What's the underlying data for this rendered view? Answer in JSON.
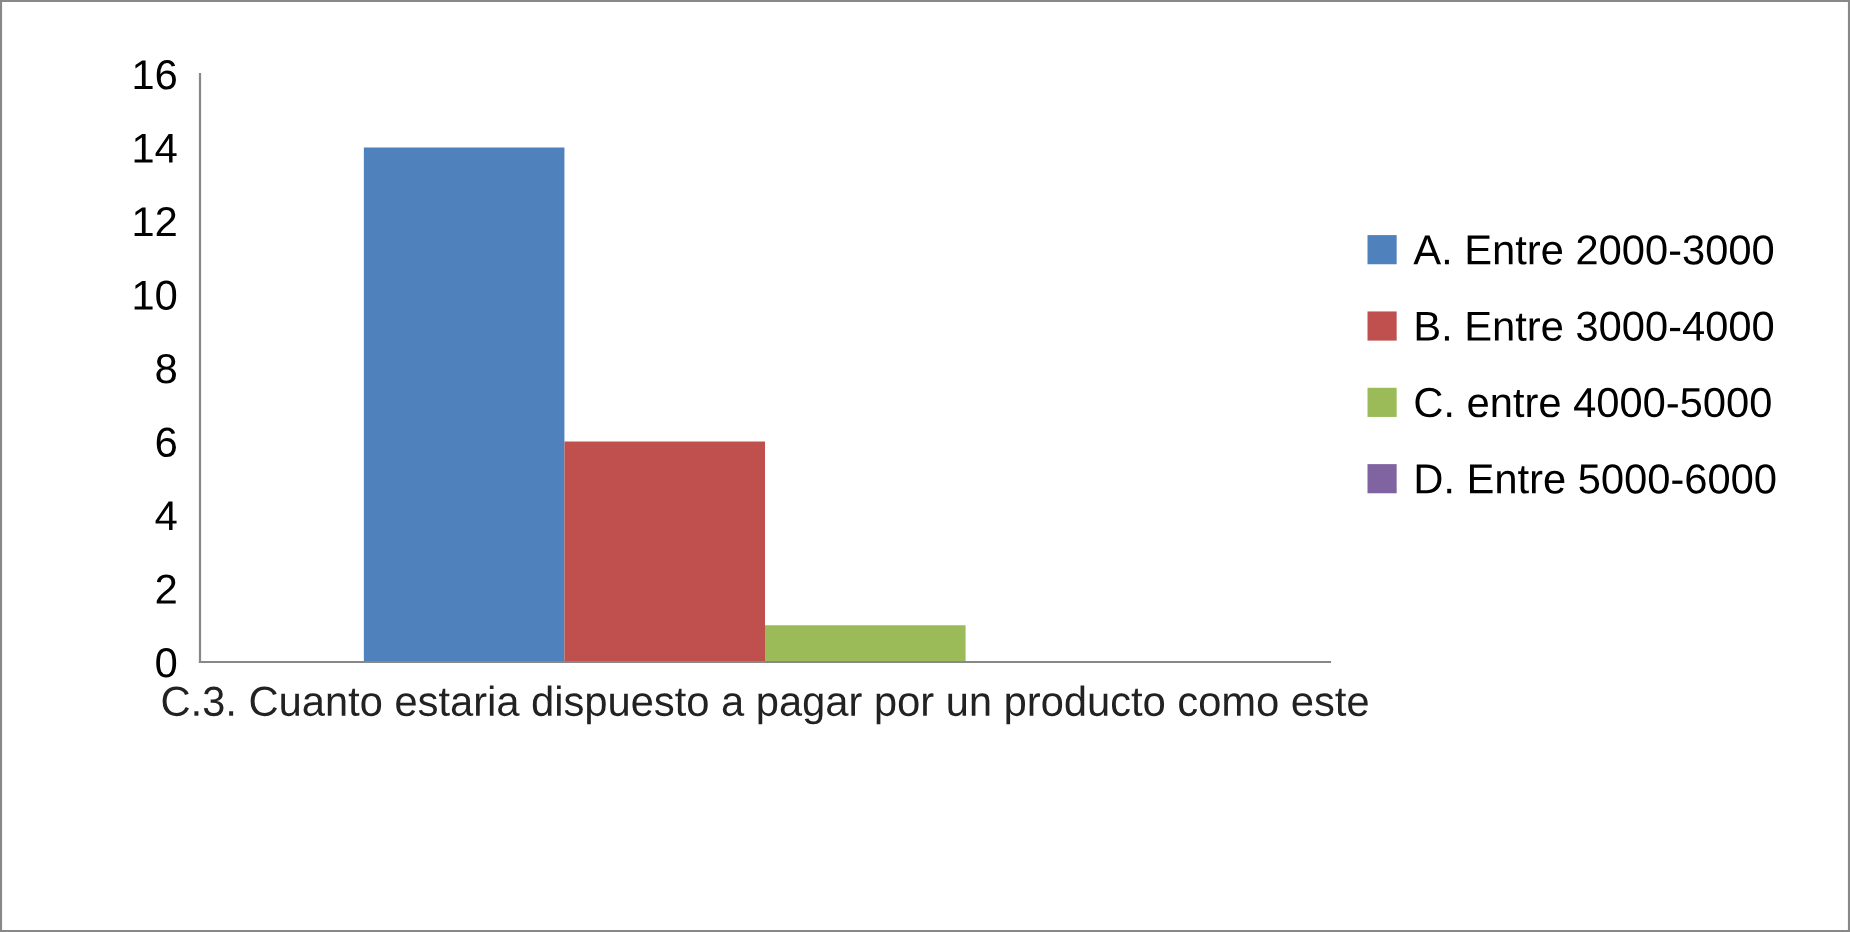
{
  "chart_data": {
    "type": "bar",
    "categories": [
      "C.3. Cuanto estaria dispuesto a pagar por un producto como este"
    ],
    "series": [
      {
        "name": "A. Entre 2000-3000",
        "color": "#4f81bd",
        "values": [
          14
        ]
      },
      {
        "name": "B. Entre 3000-4000",
        "color": "#c0504d",
        "values": [
          6
        ]
      },
      {
        "name": "C. entre 4000-5000",
        "color": "#9bbb59",
        "values": [
          1
        ]
      },
      {
        "name": "D. Entre 5000-6000",
        "color": "#8064a2",
        "values": [
          0
        ]
      }
    ],
    "ylim": [
      0,
      16
    ],
    "yticks": [
      0,
      2,
      4,
      6,
      8,
      10,
      12,
      14,
      16
    ],
    "grid": false,
    "legend": "right"
  }
}
